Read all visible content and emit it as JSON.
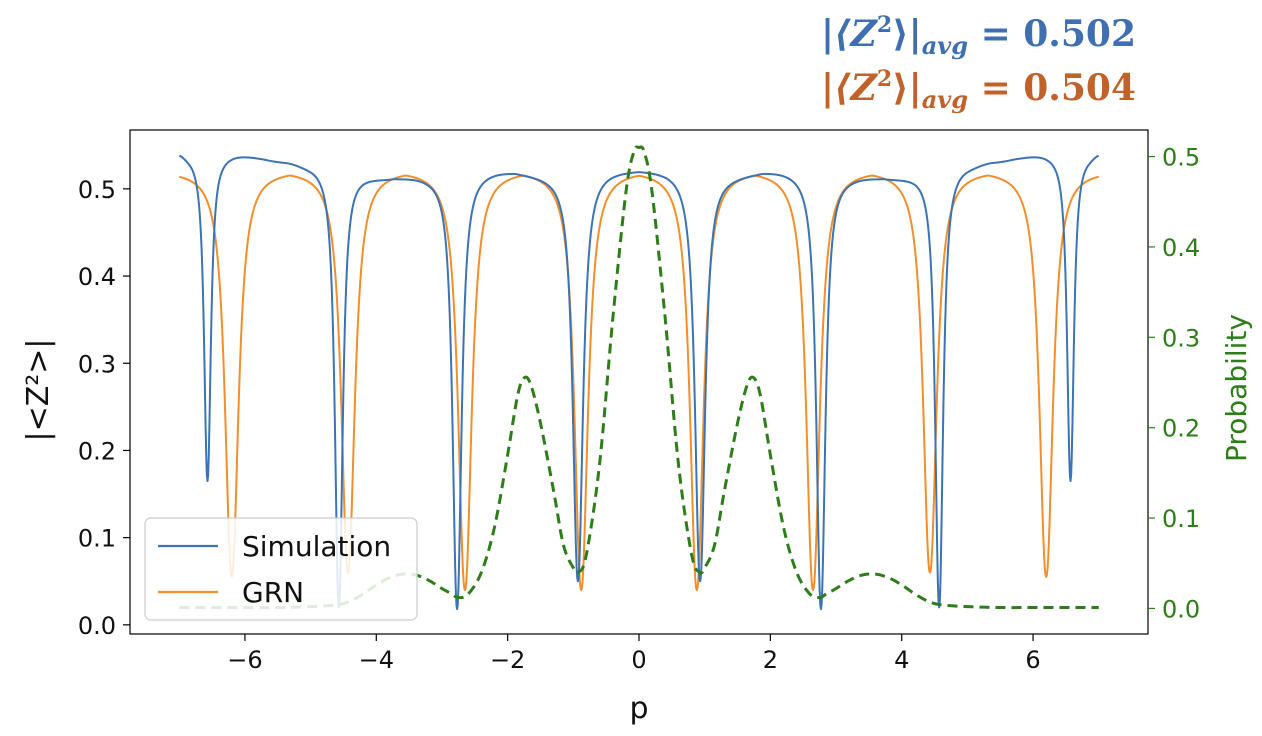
{
  "annotations": {
    "simulation_avg": {
      "label_prefix": "|⟨Z",
      "label_sup": "2",
      "label_suffix": "⟩|",
      "label_sub": "avg",
      "value_text": " = 0.502",
      "color": "#3f6fb0"
    },
    "grn_avg": {
      "label_prefix": "|⟨Z",
      "label_sup": "2",
      "label_suffix": "⟩|",
      "label_sub": "avg",
      "value_text": " = 0.504",
      "color": "#c0622a"
    }
  },
  "chart_data": {
    "type": "line",
    "xlabel": "p",
    "ylabel": "|<Z²>|",
    "ylabel_right": "Probability",
    "xlim": [
      -7.75,
      7.75
    ],
    "ylim": [
      -0.0105,
      0.5675
    ],
    "ylim_right": [
      -0.0283,
      0.5294
    ],
    "xticks": [
      -6,
      -4,
      -2,
      0,
      2,
      4,
      6
    ],
    "xtick_labels": [
      "−6",
      "−4",
      "−2",
      "0",
      "2",
      "4",
      "6"
    ],
    "yticks": [
      0.0,
      0.1,
      0.2,
      0.3,
      0.4,
      0.5
    ],
    "ytick_labels": [
      "0.0",
      "0.1",
      "0.2",
      "0.3",
      "0.4",
      "0.5"
    ],
    "yticks_right": [
      0.0,
      0.1,
      0.2,
      0.3,
      0.4,
      0.5
    ],
    "ytick_labels_right": [
      "0.0",
      "0.1",
      "0.2",
      "0.3",
      "0.4",
      "0.5"
    ],
    "grid": false,
    "legend_position": "bottom-left",
    "x_range": [
      -7.0,
      7.0
    ],
    "series": [
      {
        "name": "Simulation",
        "axis": "left",
        "color": "#3b73b5",
        "style": "solid",
        "baseline": 0.52,
        "plateaus": [
          {
            "x": -7.0,
            "y": 0.543
          },
          {
            "x": -6.85,
            "y": 0.54
          },
          {
            "x": -6.2,
            "y": 0.54
          },
          {
            "x": -5.4,
            "y": 0.532
          },
          {
            "x": -5.0,
            "y": 0.528
          },
          {
            "x": -3.8,
            "y": 0.513
          },
          {
            "x": -3.3,
            "y": 0.515
          },
          {
            "x": -2.2,
            "y": 0.521
          },
          {
            "x": -1.4,
            "y": 0.517
          },
          {
            "x": -0.4,
            "y": 0.522
          },
          {
            "x": 0.0,
            "y": 0.522
          },
          {
            "x": 0.4,
            "y": 0.522
          },
          {
            "x": 1.4,
            "y": 0.517
          },
          {
            "x": 2.2,
            "y": 0.521
          },
          {
            "x": 3.3,
            "y": 0.515
          },
          {
            "x": 3.8,
            "y": 0.513
          },
          {
            "x": 5.0,
            "y": 0.528
          },
          {
            "x": 5.4,
            "y": 0.532
          },
          {
            "x": 6.2,
            "y": 0.54
          },
          {
            "x": 6.85,
            "y": 0.54
          },
          {
            "x": 7.0,
            "y": 0.543
          }
        ],
        "dips": [
          {
            "x": -6.57,
            "depth": 0.165,
            "width": 0.06
          },
          {
            "x": -4.57,
            "depth": 0.02,
            "width": 0.07
          },
          {
            "x": -2.77,
            "depth": 0.018,
            "width": 0.08
          },
          {
            "x": -0.93,
            "depth": 0.05,
            "width": 0.09
          },
          {
            "x": 0.93,
            "depth": 0.05,
            "width": 0.09
          },
          {
            "x": 2.77,
            "depth": 0.018,
            "width": 0.08
          },
          {
            "x": 4.57,
            "depth": 0.02,
            "width": 0.07
          },
          {
            "x": 6.57,
            "depth": 0.165,
            "width": 0.06
          }
        ]
      },
      {
        "name": "GRN",
        "axis": "left",
        "color": "#f28e2b",
        "style": "solid",
        "baseline": 0.521,
        "plateaus": [
          {
            "x": -7.0,
            "y": 0.521
          },
          {
            "x": 7.0,
            "y": 0.521
          }
        ],
        "dips": [
          {
            "x": -6.2,
            "depth": 0.055,
            "width": 0.12
          },
          {
            "x": -4.43,
            "depth": 0.06,
            "width": 0.12
          },
          {
            "x": -2.65,
            "depth": 0.04,
            "width": 0.12
          },
          {
            "x": -0.88,
            "depth": 0.04,
            "width": 0.12
          },
          {
            "x": 0.88,
            "depth": 0.04,
            "width": 0.12
          },
          {
            "x": 2.65,
            "depth": 0.04,
            "width": 0.12
          },
          {
            "x": 4.43,
            "depth": 0.06,
            "width": 0.12
          },
          {
            "x": 6.2,
            "depth": 0.055,
            "width": 0.12
          }
        ]
      },
      {
        "name": "Probability",
        "axis": "right",
        "color": "#2e7d1a",
        "style": "dashed",
        "points": [
          [
            -7.0,
            0.001
          ],
          [
            -6.0,
            0.001
          ],
          [
            -5.5,
            0.001
          ],
          [
            -5.0,
            0.002
          ],
          [
            -4.6,
            0.004
          ],
          [
            -4.4,
            0.008
          ],
          [
            -4.2,
            0.016
          ],
          [
            -4.0,
            0.026
          ],
          [
            -3.8,
            0.034
          ],
          [
            -3.6,
            0.038
          ],
          [
            -3.4,
            0.037
          ],
          [
            -3.2,
            0.031
          ],
          [
            -3.0,
            0.022
          ],
          [
            -2.85,
            0.016
          ],
          [
            -2.75,
            0.012
          ],
          [
            -2.6,
            0.016
          ],
          [
            -2.4,
            0.04
          ],
          [
            -2.2,
            0.09
          ],
          [
            -2.0,
            0.17
          ],
          [
            -1.85,
            0.235
          ],
          [
            -1.75,
            0.255
          ],
          [
            -1.65,
            0.248
          ],
          [
            -1.5,
            0.205
          ],
          [
            -1.3,
            0.13
          ],
          [
            -1.15,
            0.07
          ],
          [
            -1.0,
            0.045
          ],
          [
            -0.92,
            0.04
          ],
          [
            -0.8,
            0.06
          ],
          [
            -0.6,
            0.16
          ],
          [
            -0.4,
            0.32
          ],
          [
            -0.2,
            0.46
          ],
          [
            -0.08,
            0.505
          ],
          [
            0.0,
            0.51
          ],
          [
            0.08,
            0.505
          ],
          [
            0.2,
            0.46
          ],
          [
            0.4,
            0.32
          ],
          [
            0.6,
            0.16
          ],
          [
            0.8,
            0.06
          ],
          [
            0.92,
            0.04
          ],
          [
            1.0,
            0.045
          ],
          [
            1.15,
            0.07
          ],
          [
            1.3,
            0.13
          ],
          [
            1.5,
            0.205
          ],
          [
            1.65,
            0.248
          ],
          [
            1.75,
            0.255
          ],
          [
            1.85,
            0.235
          ],
          [
            2.0,
            0.17
          ],
          [
            2.2,
            0.09
          ],
          [
            2.4,
            0.04
          ],
          [
            2.6,
            0.016
          ],
          [
            2.75,
            0.012
          ],
          [
            2.85,
            0.016
          ],
          [
            3.0,
            0.022
          ],
          [
            3.2,
            0.031
          ],
          [
            3.4,
            0.037
          ],
          [
            3.6,
            0.038
          ],
          [
            3.8,
            0.034
          ],
          [
            4.0,
            0.026
          ],
          [
            4.2,
            0.016
          ],
          [
            4.4,
            0.008
          ],
          [
            4.6,
            0.004
          ],
          [
            5.0,
            0.002
          ],
          [
            5.5,
            0.001
          ],
          [
            6.0,
            0.001
          ],
          [
            7.0,
            0.001
          ]
        ]
      }
    ]
  }
}
